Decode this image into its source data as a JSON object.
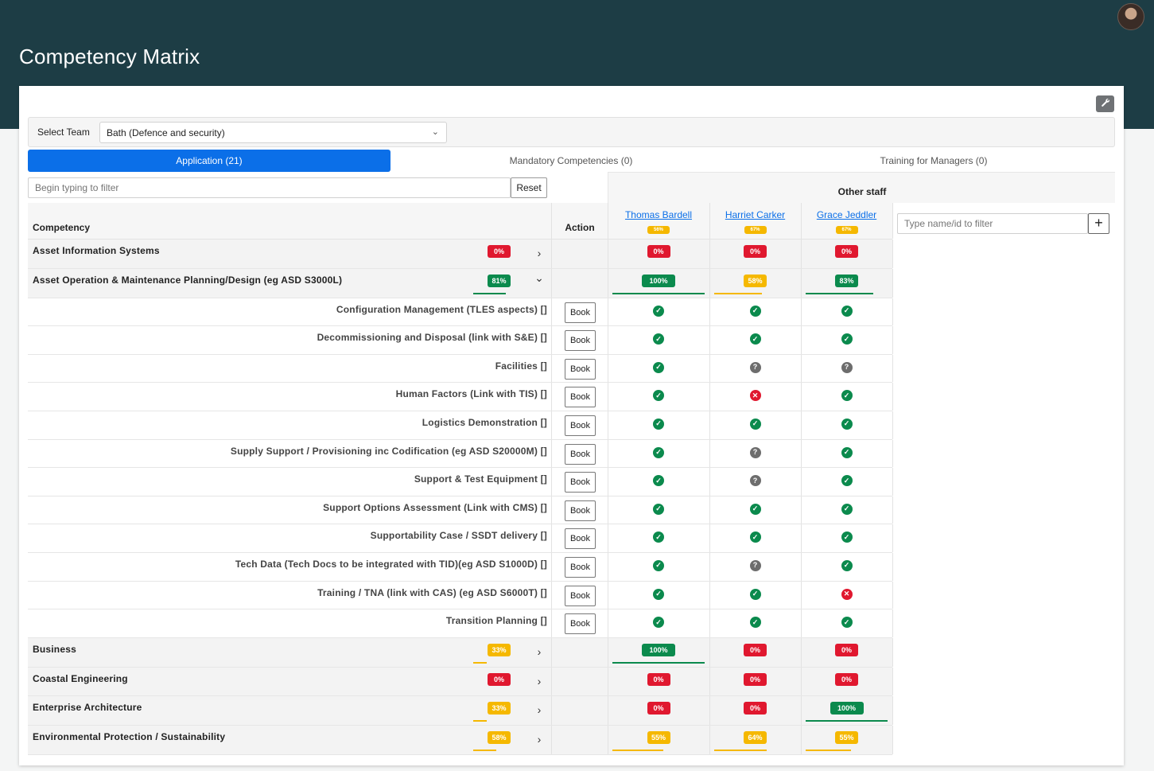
{
  "app": {
    "title": "Competency Matrix"
  },
  "team": {
    "label": "Select Team",
    "selected": "Bath (Defence and security)"
  },
  "tabs": [
    {
      "label": "Application (21)",
      "active": true
    },
    {
      "label": "Mandatory Competencies (0)",
      "active": false
    },
    {
      "label": "Training for Managers (0)",
      "active": false
    }
  ],
  "filter": {
    "placeholder": "Begin typing to filter",
    "reset_label": "Reset"
  },
  "other_staff_label": "Other staff",
  "staff_filter_placeholder": "Type name/id to filter",
  "headers": {
    "competency": "Competency",
    "action": "Action"
  },
  "staff": [
    {
      "name": "Thomas Bardell",
      "overall": "56%"
    },
    {
      "name": "Harriet Carker",
      "overall": "67%"
    },
    {
      "name": "Grace Jeddler",
      "overall": "67%"
    }
  ],
  "book_label": "Book",
  "rows": [
    {
      "type": "parent",
      "name": "Asset Information Systems",
      "pct": "0%",
      "color": "red",
      "expanded": false,
      "staff": [
        {
          "pct": "0%",
          "color": "red"
        },
        {
          "pct": "0%",
          "color": "red"
        },
        {
          "pct": "0%",
          "color": "red"
        }
      ]
    },
    {
      "type": "parent",
      "name": "Asset Operation & Maintenance Planning/Design (eg ASD S3000L)",
      "pct": "81%",
      "color": "green",
      "expanded": true,
      "staff": [
        {
          "pct": "100%",
          "color": "green"
        },
        {
          "pct": "58%",
          "color": "yellow"
        },
        {
          "pct": "83%",
          "color": "green"
        }
      ]
    },
    {
      "type": "child",
      "name": "Configuration Management (TLES aspects) []",
      "status": [
        "ok",
        "ok",
        "ok"
      ]
    },
    {
      "type": "child",
      "name": "Decommissioning and Disposal (link with S&E) []",
      "status": [
        "ok",
        "ok",
        "ok"
      ]
    },
    {
      "type": "child",
      "name": "Facilities []",
      "status": [
        "ok",
        "unknown",
        "unknown"
      ]
    },
    {
      "type": "child",
      "name": "Human Factors (Link with TIS) []",
      "status": [
        "ok",
        "fail",
        "ok"
      ]
    },
    {
      "type": "child",
      "name": "Logistics Demonstration []",
      "status": [
        "ok",
        "ok",
        "ok"
      ]
    },
    {
      "type": "child",
      "name": "Supply Support / Provisioning inc Codification (eg ASD S20000M) []",
      "status": [
        "ok",
        "unknown",
        "ok"
      ]
    },
    {
      "type": "child",
      "name": "Support & Test Equipment []",
      "status": [
        "ok",
        "unknown",
        "ok"
      ]
    },
    {
      "type": "child",
      "name": "Support Options Assessment (Link with CMS) []",
      "status": [
        "ok",
        "ok",
        "ok"
      ]
    },
    {
      "type": "child",
      "name": "Supportability Case / SSDT delivery []",
      "status": [
        "ok",
        "ok",
        "ok"
      ]
    },
    {
      "type": "child",
      "name": "Tech Data (Tech Docs to be integrated with TID)(eg ASD S1000D) []",
      "status": [
        "ok",
        "unknown",
        "ok"
      ]
    },
    {
      "type": "child",
      "name": "Training / TNA (link with CAS) (eg ASD S6000T) []",
      "status": [
        "ok",
        "ok",
        "fail"
      ]
    },
    {
      "type": "child",
      "name": "Transition Planning []",
      "status": [
        "ok",
        "ok",
        "ok"
      ]
    },
    {
      "type": "parent",
      "name": "Business",
      "pct": "33%",
      "color": "yellow",
      "expanded": false,
      "staff": [
        {
          "pct": "100%",
          "color": "green"
        },
        {
          "pct": "0%",
          "color": "red"
        },
        {
          "pct": "0%",
          "color": "red"
        }
      ]
    },
    {
      "type": "parent",
      "name": "Coastal Engineering",
      "pct": "0%",
      "color": "red",
      "expanded": false,
      "staff": [
        {
          "pct": "0%",
          "color": "red"
        },
        {
          "pct": "0%",
          "color": "red"
        },
        {
          "pct": "0%",
          "color": "red"
        }
      ]
    },
    {
      "type": "parent",
      "name": "Enterprise Architecture",
      "pct": "33%",
      "color": "yellow",
      "expanded": false,
      "staff": [
        {
          "pct": "0%",
          "color": "red"
        },
        {
          "pct": "0%",
          "color": "red"
        },
        {
          "pct": "100%",
          "color": "green"
        }
      ]
    },
    {
      "type": "parent",
      "name": "Environmental Protection / Sustainability",
      "pct": "58%",
      "color": "yellow",
      "expanded": false,
      "staff": [
        {
          "pct": "55%",
          "color": "yellow"
        },
        {
          "pct": "64%",
          "color": "yellow"
        },
        {
          "pct": "55%",
          "color": "yellow"
        }
      ]
    }
  ],
  "colors": {
    "header_bg": "#1d3d45",
    "accent": "#0b6fe8",
    "green": "#0b8a4d",
    "red": "#e0182f",
    "yellow": "#f5b800"
  }
}
